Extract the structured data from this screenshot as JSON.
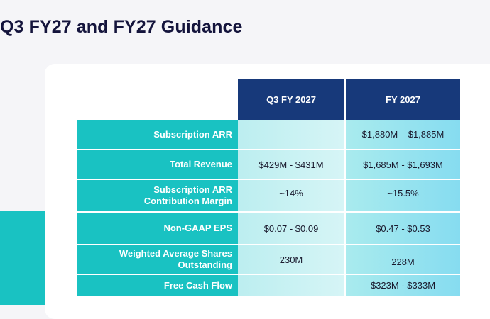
{
  "slide": {
    "title": "Q3 FY27 and FY27 Guidance"
  },
  "table": {
    "columns": [
      "Q3 FY 2027",
      "FY 2027"
    ],
    "rows": [
      {
        "label": "Subscription ARR",
        "q3": "",
        "fy": "$1,880M – $1,885M"
      },
      {
        "label": "Total Revenue",
        "q3": "$429M - $431M",
        "fy": "$1,685M - $1,693M"
      },
      {
        "label": "Subscription ARR\nContribution Margin",
        "q3": "~14%",
        "fy": "~15.5%"
      },
      {
        "label": "Non-GAAP EPS",
        "q3": "$0.07 - $0.09",
        "fy": "$0.47 - $0.53"
      },
      {
        "label": "Weighted Average Shares\nOutstanding",
        "q3": "230M",
        "fy": "228M"
      },
      {
        "label": "Free Cash Flow",
        "q3": "",
        "fy": "$323M - $333M"
      }
    ]
  },
  "colors": {
    "title": "#14143c",
    "header_navy": "#17397a",
    "label_teal": "#19c2c2",
    "card_white": "#ffffff",
    "page_bg": "#f5f5f8"
  }
}
